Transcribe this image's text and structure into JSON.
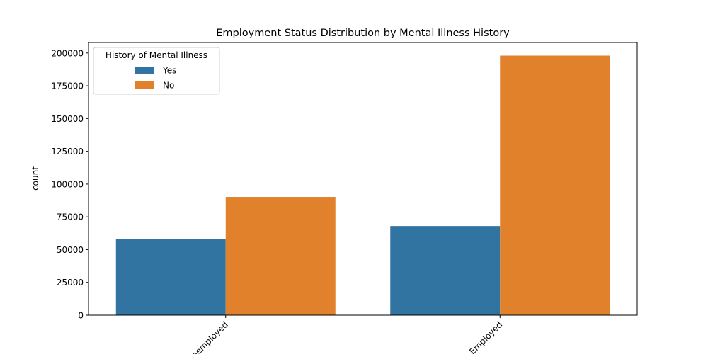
{
  "chart_data": {
    "type": "bar",
    "title": "Employment Status Distribution by Mental Illness History",
    "xlabel": "",
    "ylabel": "count",
    "categories": [
      "Unemployed",
      "Employed"
    ],
    "series": [
      {
        "name": "Yes",
        "color": "#3274a1",
        "values": [
          57800,
          68000
        ]
      },
      {
        "name": "No",
        "color": "#e1812c",
        "values": [
          90200,
          198000
        ]
      }
    ],
    "ylim": [
      0,
      208000
    ],
    "yticks": [
      0,
      25000,
      50000,
      75000,
      100000,
      125000,
      150000,
      175000,
      200000
    ],
    "ytick_labels": [
      "0",
      "25000",
      "50000",
      "75000",
      "100000",
      "125000",
      "150000",
      "175000",
      "200000"
    ],
    "legend": {
      "title": "History of Mental Illness",
      "position": "upper-left"
    },
    "grid": false,
    "xtick_rotation": -45
  }
}
